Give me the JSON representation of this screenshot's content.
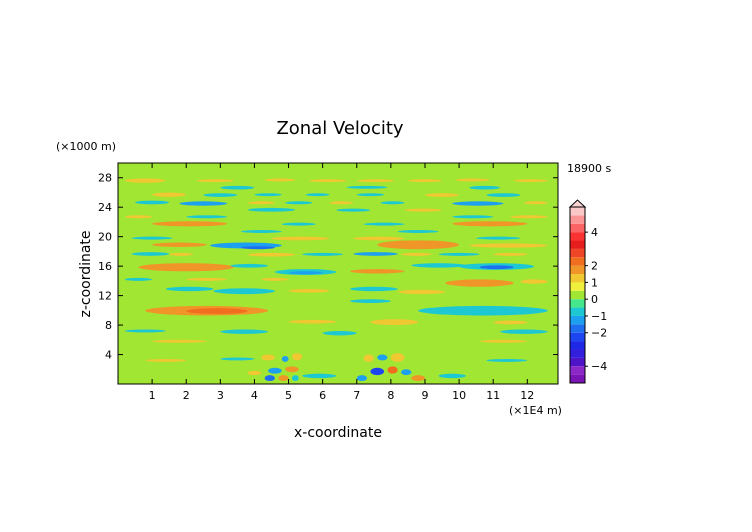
{
  "chart_data": {
    "type": "heatmap",
    "title": "Zonal Velocity",
    "xlabel": "x-coordinate",
    "ylabel": "z-coordinate",
    "x_unit": "(×1E4 m)",
    "y_unit": "(×1000 m)",
    "time_label": "18900 s",
    "xlim": [
      0,
      12.9
    ],
    "ylim": [
      0,
      30
    ],
    "x_ticks": [
      1,
      2,
      3,
      4,
      5,
      6,
      7,
      8,
      9,
      10,
      11,
      12
    ],
    "x_tick_labels": [
      "1",
      "2",
      "3",
      "4",
      "5",
      "6",
      "7",
      "8",
      "9",
      "10",
      "11",
      "12"
    ],
    "y_ticks": [
      4,
      8,
      12,
      16,
      20,
      24,
      28
    ],
    "y_tick_labels": [
      "4",
      "8",
      "12",
      "16",
      "20",
      "24",
      "28"
    ],
    "grid": false,
    "colorbar": {
      "placement": "right",
      "ticks": [
        4,
        2,
        1,
        0,
        -1,
        -2,
        -4
      ],
      "tick_labels": [
        "4",
        "2",
        "1",
        "0",
        "−1",
        "−2",
        "−4"
      ],
      "levels": [
        {
          "min": -5.0,
          "max": -4.5,
          "color": "#7A14B4"
        },
        {
          "min": -4.5,
          "max": -4.0,
          "color": "#8C28C8"
        },
        {
          "min": -4.0,
          "max": -3.5,
          "color": "#5014C8"
        },
        {
          "min": -3.5,
          "max": -3.0,
          "color": "#321EDC"
        },
        {
          "min": -3.0,
          "max": -2.5,
          "color": "#1E28E6"
        },
        {
          "min": -2.5,
          "max": -2.0,
          "color": "#1E46F0"
        },
        {
          "min": -2.0,
          "max": -1.5,
          "color": "#1E6EF0"
        },
        {
          "min": -1.5,
          "max": -1.0,
          "color": "#1EA0F0"
        },
        {
          "min": -1.0,
          "max": -0.5,
          "color": "#1EC8D2"
        },
        {
          "min": -0.5,
          "max": 0.0,
          "color": "#46E68C"
        },
        {
          "min": 0.0,
          "max": 0.5,
          "color": "#A0E632"
        },
        {
          "min": 0.5,
          "max": 1.0,
          "color": "#F0F03C"
        },
        {
          "min": 1.0,
          "max": 1.5,
          "color": "#F0C832"
        },
        {
          "min": 1.5,
          "max": 2.0,
          "color": "#F09628"
        },
        {
          "min": 2.0,
          "max": 2.5,
          "color": "#F06E1E"
        },
        {
          "min": 2.5,
          "max": 3.0,
          "color": "#F04628"
        },
        {
          "min": 3.0,
          "max": 3.5,
          "color": "#E61E1E"
        },
        {
          "min": 3.5,
          "max": 4.0,
          "color": "#FA3232"
        },
        {
          "min": 4.0,
          "max": 4.5,
          "color": "#FA6464"
        },
        {
          "min": 4.5,
          "max": 5.0,
          "color": "#FA9696"
        },
        {
          "min": 5.0,
          "max": 5.5,
          "color": "#FAC8C8"
        }
      ]
    },
    "background_value": 0.2,
    "features": [
      {
        "x": [
          0.2,
          1.4
        ],
        "y": [
          27.3,
          27.9
        ],
        "value": 1.2
      },
      {
        "x": [
          2.3,
          3.4
        ],
        "y": [
          27.4,
          27.8
        ],
        "value": 1.2
      },
      {
        "x": [
          4.3,
          5.2
        ],
        "y": [
          27.5,
          27.9
        ],
        "value": 1.2
      },
      {
        "x": [
          5.6,
          6.7
        ],
        "y": [
          27.4,
          27.8
        ],
        "value": 1.2
      },
      {
        "x": [
          7.0,
          8.1
        ],
        "y": [
          27.4,
          27.8
        ],
        "value": 1.2
      },
      {
        "x": [
          8.5,
          9.5
        ],
        "y": [
          27.4,
          27.8
        ],
        "value": 1.2
      },
      {
        "x": [
          9.9,
          10.9
        ],
        "y": [
          27.5,
          27.9
        ],
        "value": 1.2
      },
      {
        "x": [
          11.6,
          12.6
        ],
        "y": [
          27.4,
          27.8
        ],
        "value": 1.2
      },
      {
        "x": [
          3.0,
          4.0
        ],
        "y": [
          26.4,
          26.9
        ],
        "value": -0.8
      },
      {
        "x": [
          6.7,
          7.9
        ],
        "y": [
          26.5,
          26.9
        ],
        "value": -0.8
      },
      {
        "x": [
          10.3,
          11.2
        ],
        "y": [
          26.4,
          26.9
        ],
        "value": -0.8
      },
      {
        "x": [
          1.0,
          2.0
        ],
        "y": [
          25.4,
          26.0
        ],
        "value": 1.2
      },
      {
        "x": [
          2.5,
          3.5
        ],
        "y": [
          25.4,
          25.9
        ],
        "value": -0.6
      },
      {
        "x": [
          4.0,
          4.8
        ],
        "y": [
          25.5,
          25.9
        ],
        "value": -0.6
      },
      {
        "x": [
          5.5,
          6.2
        ],
        "y": [
          25.5,
          25.9
        ],
        "value": -0.6
      },
      {
        "x": [
          7.0,
          7.8
        ],
        "y": [
          25.5,
          25.9
        ],
        "value": -0.6
      },
      {
        "x": [
          9.0,
          10.0
        ],
        "y": [
          25.4,
          25.9
        ],
        "value": 1.2
      },
      {
        "x": [
          10.8,
          11.8
        ],
        "y": [
          25.4,
          25.9
        ],
        "value": -0.6
      },
      {
        "x": [
          0.5,
          1.5
        ],
        "y": [
          24.4,
          24.9
        ],
        "value": -0.7
      },
      {
        "x": [
          1.8,
          3.2
        ],
        "y": [
          24.2,
          24.8
        ],
        "value": -1.5
      },
      {
        "x": [
          3.8,
          4.6
        ],
        "y": [
          24.4,
          24.8
        ],
        "value": 1.2
      },
      {
        "x": [
          4.9,
          5.7
        ],
        "y": [
          24.4,
          24.8
        ],
        "value": -0.8
      },
      {
        "x": [
          6.2,
          6.9
        ],
        "y": [
          24.4,
          24.8
        ],
        "value": 1.2
      },
      {
        "x": [
          7.7,
          8.4
        ],
        "y": [
          24.4,
          24.8
        ],
        "value": -0.8
      },
      {
        "x": [
          9.8,
          11.3
        ],
        "y": [
          24.2,
          24.8
        ],
        "value": -1.2
      },
      {
        "x": [
          11.9,
          12.6
        ],
        "y": [
          24.4,
          24.8
        ],
        "value": 1.2
      },
      {
        "x": [
          3.8,
          5.2
        ],
        "y": [
          23.4,
          23.9
        ],
        "value": -0.7
      },
      {
        "x": [
          6.4,
          7.4
        ],
        "y": [
          23.4,
          23.8
        ],
        "value": -0.7
      },
      {
        "x": [
          8.4,
          9.5
        ],
        "y": [
          23.4,
          23.8
        ],
        "value": 1.2
      },
      {
        "x": [
          0.2,
          1.0
        ],
        "y": [
          22.5,
          22.9
        ],
        "value": 1.2
      },
      {
        "x": [
          2.0,
          3.2
        ],
        "y": [
          22.5,
          22.9
        ],
        "value": -0.7
      },
      {
        "x": [
          9.8,
          11.0
        ],
        "y": [
          22.5,
          22.9
        ],
        "value": -0.7
      },
      {
        "x": [
          11.5,
          12.6
        ],
        "y": [
          22.5,
          22.9
        ],
        "value": 1.2
      },
      {
        "x": [
          1.0,
          3.2
        ],
        "y": [
          21.4,
          22.1
        ],
        "value": 1.8
      },
      {
        "x": [
          4.8,
          5.8
        ],
        "y": [
          21.5,
          21.9
        ],
        "value": -0.6
      },
      {
        "x": [
          7.2,
          8.4
        ],
        "y": [
          21.5,
          21.9
        ],
        "value": -0.6
      },
      {
        "x": [
          9.8,
          12.0
        ],
        "y": [
          21.4,
          22.1
        ],
        "value": 1.6
      },
      {
        "x": [
          3.6,
          4.8
        ],
        "y": [
          20.5,
          20.9
        ],
        "value": -0.8
      },
      {
        "x": [
          8.2,
          9.4
        ],
        "y": [
          20.5,
          20.9
        ],
        "value": -0.8
      },
      {
        "x": [
          0.4,
          1.6
        ],
        "y": [
          19.6,
          20.0
        ],
        "value": -0.7
      },
      {
        "x": [
          4.5,
          6.2
        ],
        "y": [
          19.5,
          20.0
        ],
        "value": 1.4
      },
      {
        "x": [
          6.9,
          8.4
        ],
        "y": [
          19.5,
          20.0
        ],
        "value": 1.4
      },
      {
        "x": [
          10.5,
          11.8
        ],
        "y": [
          19.6,
          20.0
        ],
        "value": -0.6
      },
      {
        "x": [
          1.0,
          2.6
        ],
        "y": [
          18.6,
          19.2
        ],
        "value": 1.6
      },
      {
        "x": [
          2.7,
          4.8
        ],
        "y": [
          18.4,
          19.2
        ],
        "value": -1.2
      },
      {
        "x": [
          3.6,
          4.6
        ],
        "y": [
          18.3,
          18.7
        ],
        "value": -1.8
      },
      {
        "x": [
          7.6,
          10.0
        ],
        "y": [
          18.3,
          19.5
        ],
        "value": 1.9
      },
      {
        "x": [
          10.3,
          12.6
        ],
        "y": [
          18.5,
          19.1
        ],
        "value": 1.2
      },
      {
        "x": [
          0.4,
          1.5
        ],
        "y": [
          17.4,
          17.9
        ],
        "value": -0.7
      },
      {
        "x": [
          1.5,
          2.2
        ],
        "y": [
          17.4,
          17.8
        ],
        "value": 1.2
      },
      {
        "x": [
          3.8,
          5.2
        ],
        "y": [
          17.3,
          17.8
        ],
        "value": 1.4
      },
      {
        "x": [
          5.4,
          6.6
        ],
        "y": [
          17.4,
          17.8
        ],
        "value": -0.7
      },
      {
        "x": [
          6.9,
          8.2
        ],
        "y": [
          17.4,
          17.9
        ],
        "value": -1.2
      },
      {
        "x": [
          8.3,
          9.2
        ],
        "y": [
          17.4,
          17.8
        ],
        "value": 1.3
      },
      {
        "x": [
          9.4,
          10.6
        ],
        "y": [
          17.4,
          17.8
        ],
        "value": -0.7
      },
      {
        "x": [
          11.0,
          12.0
        ],
        "y": [
          17.4,
          17.8
        ],
        "value": 1.4
      },
      {
        "x": [
          0.6,
          3.4
        ],
        "y": [
          15.3,
          16.4
        ],
        "value": 1.7
      },
      {
        "x": [
          3.3,
          4.4
        ],
        "y": [
          15.8,
          16.3
        ],
        "value": -0.8
      },
      {
        "x": [
          4.6,
          6.4
        ],
        "y": [
          14.8,
          15.6
        ],
        "value": -0.9
      },
      {
        "x": [
          5.0,
          6.0
        ],
        "y": [
          14.9,
          15.3
        ],
        "value": -1.2
      },
      {
        "x": [
          6.8,
          8.4
        ],
        "y": [
          15.0,
          15.6
        ],
        "value": 1.6
      },
      {
        "x": [
          8.6,
          10.2
        ],
        "y": [
          15.8,
          16.4
        ],
        "value": -0.6
      },
      {
        "x": [
          10.0,
          12.2
        ],
        "y": [
          15.5,
          16.4
        ],
        "value": -1.0
      },
      {
        "x": [
          10.6,
          11.6
        ],
        "y": [
          15.6,
          16.1
        ],
        "value": -1.6
      },
      {
        "x": [
          0.2,
          1.0
        ],
        "y": [
          14.0,
          14.4
        ],
        "value": -0.7
      },
      {
        "x": [
          2.0,
          3.2
        ],
        "y": [
          14.0,
          14.4
        ],
        "value": 1.2
      },
      {
        "x": [
          4.2,
          5.0
        ],
        "y": [
          14.0,
          14.4
        ],
        "value": 1.2
      },
      {
        "x": [
          9.6,
          11.6
        ],
        "y": [
          13.2,
          14.2
        ],
        "value": 1.6
      },
      {
        "x": [
          11.8,
          12.6
        ],
        "y": [
          13.6,
          14.2
        ],
        "value": 1.2
      },
      {
        "x": [
          1.4,
          2.8
        ],
        "y": [
          12.6,
          13.2
        ],
        "value": -0.9
      },
      {
        "x": [
          2.8,
          4.6
        ],
        "y": [
          12.2,
          13.0
        ],
        "value": -0.8
      },
      {
        "x": [
          5.0,
          6.2
        ],
        "y": [
          12.4,
          12.9
        ],
        "value": 1.2
      },
      {
        "x": [
          6.8,
          8.2
        ],
        "y": [
          12.6,
          13.2
        ],
        "value": -0.8
      },
      {
        "x": [
          8.2,
          9.6
        ],
        "y": [
          12.2,
          12.8
        ],
        "value": 1.2
      },
      {
        "x": [
          6.8,
          8.0
        ],
        "y": [
          11.0,
          11.5
        ],
        "value": -0.8
      },
      {
        "x": [
          0.8,
          4.4
        ],
        "y": [
          9.3,
          10.6
        ],
        "value": 1.8
      },
      {
        "x": [
          2.0,
          3.8
        ],
        "y": [
          9.5,
          10.3
        ],
        "value": 2.0
      },
      {
        "x": [
          8.8,
          12.6
        ],
        "y": [
          9.3,
          10.6
        ],
        "value": -0.8
      },
      {
        "x": [
          9.6,
          11.6
        ],
        "y": [
          9.6,
          10.2
        ],
        "value": -0.9
      },
      {
        "x": [
          5.0,
          6.4
        ],
        "y": [
          8.2,
          8.7
        ],
        "value": 1.2
      },
      {
        "x": [
          7.4,
          8.8
        ],
        "y": [
          8.0,
          8.8
        ],
        "value": 1.2
      },
      {
        "x": [
          11.0,
          12.0
        ],
        "y": [
          8.1,
          8.6
        ],
        "value": 1.2
      },
      {
        "x": [
          0.2,
          1.4
        ],
        "y": [
          7.0,
          7.4
        ],
        "value": -0.6
      },
      {
        "x": [
          3.0,
          4.4
        ],
        "y": [
          6.8,
          7.4
        ],
        "value": -0.7
      },
      {
        "x": [
          6.0,
          7.0
        ],
        "y": [
          6.6,
          7.2
        ],
        "value": -0.7
      },
      {
        "x": [
          11.2,
          12.6
        ],
        "y": [
          6.8,
          7.4
        ],
        "value": -0.6
      },
      {
        "x": [
          1.0,
          2.6
        ],
        "y": [
          5.6,
          6.0
        ],
        "value": 1.2
      },
      {
        "x": [
          10.6,
          12.0
        ],
        "y": [
          5.6,
          6.0
        ],
        "value": 1.2
      },
      {
        "x": [
          0.8,
          2.0
        ],
        "y": [
          3.0,
          3.4
        ],
        "value": 1.2
      },
      {
        "x": [
          3.0,
          4.0
        ],
        "y": [
          3.2,
          3.6
        ],
        "value": -0.6
      },
      {
        "x": [
          10.8,
          12.0
        ],
        "y": [
          3.0,
          3.4
        ],
        "value": -0.7
      },
      {
        "x": [
          4.2,
          4.6
        ],
        "y": [
          3.2,
          4.0
        ],
        "value": 1.3
      },
      {
        "x": [
          4.8,
          5.0
        ],
        "y": [
          3.0,
          3.8
        ],
        "value": -1.5
      },
      {
        "x": [
          5.1,
          5.4
        ],
        "y": [
          3.2,
          4.2
        ],
        "value": 1.3
      },
      {
        "x": [
          4.4,
          4.8
        ],
        "y": [
          1.4,
          2.2
        ],
        "value": -1.2
      },
      {
        "x": [
          4.9,
          5.3
        ],
        "y": [
          1.6,
          2.4
        ],
        "value": 1.5
      },
      {
        "x": [
          4.3,
          4.6
        ],
        "y": [
          0.4,
          1.2
        ],
        "value": -2.0
      },
      {
        "x": [
          4.7,
          5.0
        ],
        "y": [
          0.4,
          1.2
        ],
        "value": 1.6
      },
      {
        "x": [
          5.1,
          5.3
        ],
        "y": [
          0.4,
          1.2
        ],
        "value": -1.0
      },
      {
        "x": [
          3.8,
          4.2
        ],
        "y": [
          1.2,
          1.8
        ],
        "value": 1.2
      },
      {
        "x": [
          5.4,
          6.4
        ],
        "y": [
          0.8,
          1.4
        ],
        "value": -0.6
      },
      {
        "x": [
          7.2,
          7.5
        ],
        "y": [
          3.0,
          4.0
        ],
        "value": 1.4
      },
      {
        "x": [
          7.6,
          7.9
        ],
        "y": [
          3.2,
          4.0
        ],
        "value": -1.3
      },
      {
        "x": [
          8.0,
          8.4
        ],
        "y": [
          3.0,
          4.2
        ],
        "value": 1.4
      },
      {
        "x": [
          7.4,
          7.8
        ],
        "y": [
          1.2,
          2.2
        ],
        "value": -2.5
      },
      {
        "x": [
          7.9,
          8.2
        ],
        "y": [
          1.4,
          2.4
        ],
        "value": 2.0
      },
      {
        "x": [
          8.3,
          8.6
        ],
        "y": [
          1.2,
          2.0
        ],
        "value": -1.5
      },
      {
        "x": [
          7.0,
          7.3
        ],
        "y": [
          0.4,
          1.2
        ],
        "value": -1.3
      },
      {
        "x": [
          8.6,
          9.0
        ],
        "y": [
          0.4,
          1.2
        ],
        "value": 1.5
      },
      {
        "x": [
          9.4,
          10.2
        ],
        "y": [
          0.8,
          1.4
        ],
        "value": -0.6
      }
    ]
  }
}
